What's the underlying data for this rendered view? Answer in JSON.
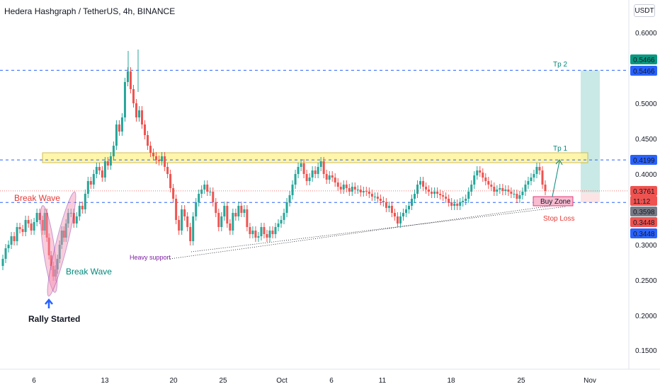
{
  "header": {
    "title": "Hedera Hashgraph / TetherUS, 4h, BINANCE",
    "currency": "USDT"
  },
  "chart_data": {
    "type": "candlestick",
    "symbol": "HBARUSDT",
    "ylim": [
      0.13,
      0.63
    ],
    "y_ticks": [
      "0.6000",
      "0.5000",
      "0.4500",
      "0.4000",
      "0.3000",
      "0.2500",
      "0.2000",
      "0.1500"
    ],
    "x_ticks": [
      "6",
      "13",
      "20",
      "25",
      "Oct",
      "6",
      "11",
      "18",
      "25",
      "Nov"
    ],
    "series": [
      {
        "values": [
          [
            0,
            0.27
          ],
          [
            4,
            0.28
          ],
          [
            8,
            0.295
          ],
          [
            12,
            0.3
          ],
          [
            16,
            0.312
          ],
          [
            20,
            0.305
          ],
          [
            24,
            0.325
          ],
          [
            28,
            0.322
          ],
          [
            32,
            0.318
          ],
          [
            36,
            0.335
          ],
          [
            40,
            0.33
          ],
          [
            44,
            0.32
          ],
          [
            48,
            0.332
          ],
          [
            52,
            0.345
          ],
          [
            56,
            0.335
          ],
          [
            60,
            0.32
          ],
          [
            63,
            0.345
          ],
          [
            66,
            0.31
          ],
          [
            69,
            0.285
          ],
          [
            72,
            0.27
          ],
          [
            75,
            0.255
          ],
          [
            78,
            0.265
          ],
          [
            81,
            0.28
          ],
          [
            84,
            0.3
          ],
          [
            87,
            0.32
          ],
          [
            90,
            0.31
          ],
          [
            93,
            0.33
          ],
          [
            96,
            0.345
          ],
          [
            100,
            0.345
          ],
          [
            104,
            0.33
          ],
          [
            108,
            0.34
          ],
          [
            112,
            0.355
          ],
          [
            116,
            0.35
          ],
          [
            120,
            0.372
          ],
          [
            124,
            0.39
          ],
          [
            128,
            0.385
          ],
          [
            132,
            0.4
          ],
          [
            136,
            0.41
          ],
          [
            140,
            0.405
          ],
          [
            144,
            0.395
          ],
          [
            148,
            0.418
          ],
          [
            152,
            0.412
          ],
          [
            156,
            0.425
          ],
          [
            160,
            0.44
          ],
          [
            164,
            0.47
          ],
          [
            168,
            0.46
          ],
          [
            172,
            0.48
          ],
          [
            176,
            0.53
          ],
          [
            180,
            0.545
          ],
          [
            184,
            0.52
          ],
          [
            188,
            0.5
          ],
          [
            192,
            0.48
          ],
          [
            196,
            0.49
          ],
          [
            200,
            0.47
          ],
          [
            204,
            0.455
          ],
          [
            208,
            0.44
          ],
          [
            212,
            0.43
          ],
          [
            216,
            0.425
          ],
          [
            220,
            0.42
          ],
          [
            224,
            0.418
          ],
          [
            228,
            0.425
          ],
          [
            232,
            0.41
          ],
          [
            236,
            0.4
          ],
          [
            240,
            0.38
          ],
          [
            244,
            0.365
          ],
          [
            248,
            0.335
          ],
          [
            252,
            0.32
          ],
          [
            256,
            0.35
          ],
          [
            260,
            0.34
          ],
          [
            264,
            0.325
          ],
          [
            268,
            0.305
          ],
          [
            272,
            0.34
          ],
          [
            276,
            0.36
          ],
          [
            280,
            0.372
          ],
          [
            284,
            0.378
          ],
          [
            288,
            0.385
          ],
          [
            292,
            0.375
          ],
          [
            296,
            0.375
          ],
          [
            300,
            0.36
          ],
          [
            304,
            0.345
          ],
          [
            308,
            0.325
          ],
          [
            312,
            0.34
          ],
          [
            316,
            0.355
          ],
          [
            320,
            0.33
          ],
          [
            324,
            0.32
          ],
          [
            328,
            0.345
          ],
          [
            332,
            0.34
          ],
          [
            336,
            0.355
          ],
          [
            340,
            0.345
          ],
          [
            344,
            0.35
          ],
          [
            348,
            0.325
          ],
          [
            352,
            0.315
          ],
          [
            356,
            0.32
          ],
          [
            360,
            0.31
          ],
          [
            364,
            0.312
          ],
          [
            368,
            0.325
          ],
          [
            372,
            0.315
          ],
          [
            376,
            0.31
          ],
          [
            380,
            0.32
          ],
          [
            384,
            0.315
          ],
          [
            388,
            0.325
          ],
          [
            392,
            0.33
          ],
          [
            396,
            0.335
          ],
          [
            400,
            0.345
          ],
          [
            404,
            0.36
          ],
          [
            408,
            0.37
          ],
          [
            412,
            0.385
          ],
          [
            416,
            0.4
          ],
          [
            420,
            0.41
          ],
          [
            424,
            0.415
          ],
          [
            428,
            0.4
          ],
          [
            432,
            0.39
          ],
          [
            436,
            0.395
          ],
          [
            440,
            0.405
          ],
          [
            444,
            0.4
          ],
          [
            448,
            0.41
          ],
          [
            452,
            0.418
          ],
          [
            456,
            0.4
          ],
          [
            460,
            0.392
          ],
          [
            464,
            0.398
          ],
          [
            468,
            0.395
          ],
          [
            472,
            0.388
          ],
          [
            476,
            0.382
          ],
          [
            480,
            0.378
          ],
          [
            484,
            0.385
          ],
          [
            488,
            0.38
          ],
          [
            492,
            0.375
          ],
          [
            496,
            0.382
          ],
          [
            500,
            0.378
          ],
          [
            504,
            0.378
          ],
          [
            508,
            0.374
          ],
          [
            512,
            0.376
          ],
          [
            516,
            0.375
          ],
          [
            520,
            0.372
          ],
          [
            524,
            0.368
          ],
          [
            528,
            0.368
          ],
          [
            532,
            0.365
          ],
          [
            536,
            0.362
          ],
          [
            540,
            0.36
          ],
          [
            544,
            0.352
          ],
          [
            548,
            0.355
          ],
          [
            552,
            0.345
          ],
          [
            556,
            0.34
          ],
          [
            560,
            0.33
          ],
          [
            564,
            0.34
          ],
          [
            568,
            0.345
          ],
          [
            572,
            0.35
          ],
          [
            576,
            0.355
          ],
          [
            580,
            0.365
          ],
          [
            584,
            0.372
          ],
          [
            588,
            0.385
          ],
          [
            592,
            0.39
          ],
          [
            596,
            0.382
          ],
          [
            600,
            0.378
          ],
          [
            604,
            0.375
          ],
          [
            608,
            0.372
          ],
          [
            612,
            0.375
          ],
          [
            616,
            0.372
          ],
          [
            620,
            0.37
          ],
          [
            624,
            0.368
          ],
          [
            628,
            0.365
          ],
          [
            632,
            0.36
          ],
          [
            636,
            0.355
          ],
          [
            640,
            0.358
          ],
          [
            644,
            0.355
          ],
          [
            648,
            0.36
          ],
          [
            652,
            0.362
          ],
          [
            656,
            0.365
          ],
          [
            660,
            0.375
          ],
          [
            664,
            0.385
          ],
          [
            668,
            0.398
          ],
          [
            672,
            0.405
          ],
          [
            676,
            0.402
          ],
          [
            680,
            0.395
          ],
          [
            684,
            0.39
          ],
          [
            688,
            0.385
          ],
          [
            692,
            0.382
          ],
          [
            696,
            0.375
          ],
          [
            700,
            0.378
          ],
          [
            704,
            0.38
          ],
          [
            708,
            0.376
          ],
          [
            712,
            0.378
          ],
          [
            716,
            0.375
          ],
          [
            720,
            0.372
          ],
          [
            724,
            0.372
          ],
          [
            728,
            0.365
          ],
          [
            732,
            0.37
          ],
          [
            736,
            0.375
          ],
          [
            740,
            0.385
          ],
          [
            744,
            0.39
          ],
          [
            748,
            0.395
          ],
          [
            752,
            0.4
          ],
          [
            756,
            0.41
          ],
          [
            760,
            0.405
          ],
          [
            764,
            0.385
          ],
          [
            768,
            0.376
          ]
        ]
      }
    ],
    "levels": {
      "tp2": {
        "value": 0.5466,
        "label": "Tp 2",
        "price_tag": "0.5466"
      },
      "tp1": {
        "value": 0.4199,
        "label": "Tp 1",
        "price_tag": "0.4199"
      },
      "current": {
        "value": 0.3761,
        "price_tag": "0.3761",
        "countdown": "11:12"
      },
      "entry": {
        "value": 0.3598,
        "price_tag": "0.3598"
      },
      "stop": {
        "value": 0.3448,
        "label": "Stop Loss",
        "price_tag": "0.3448"
      },
      "stop_tag2": "0.3448"
    },
    "annotations": {
      "break_wave_left": "Break Wave",
      "break_wave_right": "Break Wave",
      "rally_started": "Rally Started",
      "heavy_support": "Heavy support",
      "buy_zone": "Buy Zone"
    },
    "colors": {
      "up": "#26a69a",
      "down": "#ef5350",
      "level_line": "#2962ff",
      "zone_fill": "#fff59d",
      "tp_fill": "#b2dfdb",
      "sl_fill": "#ffcdd2",
      "current_line": "#ef5350",
      "wave_fill": "#f48fb1",
      "wave_stroke": "#7b1fa2",
      "rally_arrow": "#2962ff"
    }
  }
}
